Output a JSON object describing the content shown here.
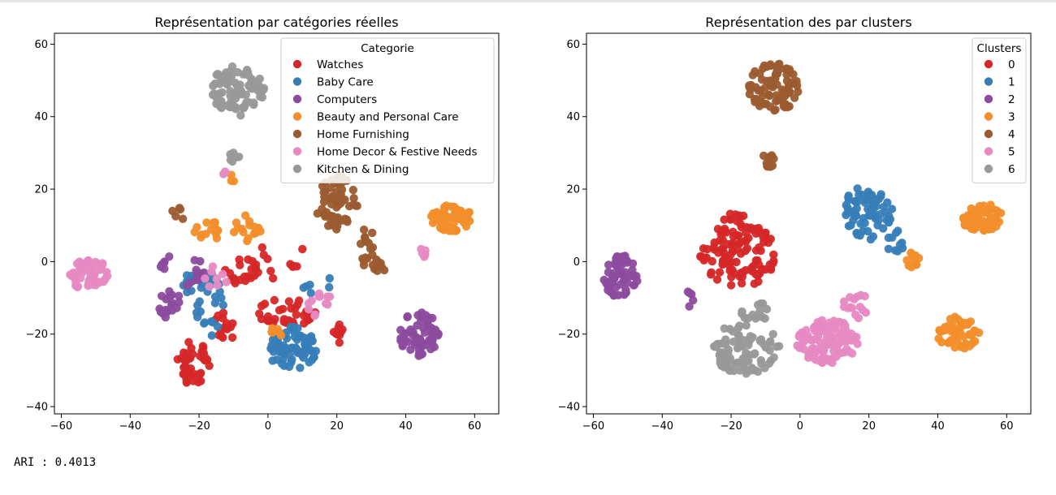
{
  "output": {
    "ari_label": "ARI : ",
    "ari_value": "0.4013"
  },
  "colors": {
    "red": "#d62728",
    "blue": "#377eb8",
    "purple": "#8c4b9e",
    "orange": "#f28e2b",
    "brown": "#9b5b2f",
    "pink": "#e78ac3",
    "gray": "#999999"
  },
  "chart_data": [
    {
      "type": "scatter",
      "title": "Représentation  par catégories réelles",
      "xlabel": "",
      "ylabel": "",
      "xlim": [
        -62,
        67
      ],
      "ylim": [
        -42,
        63
      ],
      "xticks": [
        -60,
        -40,
        -20,
        0,
        20,
        40,
        60
      ],
      "yticks": [
        -40,
        -20,
        0,
        20,
        40,
        60
      ],
      "grid": false,
      "legend": {
        "title": "Categorie",
        "placement": "top-right"
      },
      "series": [
        {
          "name": "Watches",
          "color": "#d62728",
          "clusters": [
            {
              "cx": -22,
              "cy": -28,
              "rx": 5,
              "ry": 6,
              "n": 40
            },
            {
              "cx": -12,
              "cy": -18,
              "rx": 4,
              "ry": 4,
              "n": 15
            },
            {
              "cx": -8,
              "cy": -3,
              "rx": 6,
              "ry": 4,
              "n": 20
            },
            {
              "cx": 5,
              "cy": -14,
              "rx": 9,
              "ry": 4,
              "n": 35
            },
            {
              "cx": 20,
              "cy": -20,
              "rx": 2,
              "ry": 3,
              "n": 10
            },
            {
              "cx": 4,
              "cy": 0,
              "rx": 8,
              "ry": 6,
              "n": 10
            }
          ]
        },
        {
          "name": "Baby Care",
          "color": "#377eb8",
          "clusters": [
            {
              "cx": 7,
              "cy": -24,
              "rx": 7,
              "ry": 6,
              "n": 75
            },
            {
              "cx": -17,
              "cy": -12,
              "rx": 4,
              "ry": 10,
              "n": 25
            },
            {
              "cx": -23,
              "cy": -7,
              "rx": 4,
              "ry": 4,
              "n": 10
            },
            {
              "cx": 14,
              "cy": -6,
              "rx": 5,
              "ry": 3,
              "n": 6
            }
          ]
        },
        {
          "name": "Computers",
          "color": "#8c4b9e",
          "clusters": [
            {
              "cx": 44,
              "cy": -20,
              "rx": 6,
              "ry": 6,
              "n": 60
            },
            {
              "cx": -28,
              "cy": -12,
              "rx": 4,
              "ry": 4,
              "n": 18
            },
            {
              "cx": -22,
              "cy": -3,
              "rx": 4,
              "ry": 4,
              "n": 10
            },
            {
              "cx": -30,
              "cy": 1,
              "rx": 2,
              "ry": 3,
              "n": 6
            }
          ]
        },
        {
          "name": "Beauty and Personal Care",
          "color": "#f28e2b",
          "clusters": [
            {
              "cx": 53,
              "cy": 12,
              "rx": 6,
              "ry": 4,
              "n": 60
            },
            {
              "cx": -17,
              "cy": 8,
              "rx": 5,
              "ry": 3,
              "n": 14
            },
            {
              "cx": -6,
              "cy": 9,
              "rx": 4,
              "ry": 4,
              "n": 15
            },
            {
              "cx": 2,
              "cy": -20,
              "rx": 2,
              "ry": 2,
              "n": 6
            },
            {
              "cx": -11,
              "cy": 23,
              "rx": 2,
              "ry": 1,
              "n": 3
            }
          ]
        },
        {
          "name": "Home Furnishing",
          "color": "#9b5b2f",
          "clusters": [
            {
              "cx": 20,
              "cy": 16,
              "rx": 6,
              "ry": 8,
              "n": 60
            },
            {
              "cx": 28,
              "cy": 4,
              "rx": 4,
              "ry": 5,
              "n": 15
            },
            {
              "cx": 32,
              "cy": -2,
              "rx": 2,
              "ry": 3,
              "n": 10
            },
            {
              "cx": -26,
              "cy": 13,
              "rx": 2,
              "ry": 2,
              "n": 5
            }
          ]
        },
        {
          "name": "Home Decor & Festive Needs",
          "color": "#e78ac3",
          "clusters": [
            {
              "cx": -52,
              "cy": -4,
              "rx": 6,
              "ry": 5,
              "n": 55
            },
            {
              "cx": 15,
              "cy": -12,
              "rx": 4,
              "ry": 4,
              "n": 12
            },
            {
              "cx": -15,
              "cy": -4,
              "rx": 4,
              "ry": 4,
              "n": 8
            },
            {
              "cx": 45,
              "cy": 2,
              "rx": 2,
              "ry": 2,
              "n": 5
            },
            {
              "cx": -12,
              "cy": 24,
              "rx": 1,
              "ry": 1,
              "n": 3
            }
          ]
        },
        {
          "name": "Kitchen & Dining",
          "color": "#999999",
          "clusters": [
            {
              "cx": -9,
              "cy": 47,
              "rx": 8,
              "ry": 7,
              "n": 80
            },
            {
              "cx": -10,
              "cy": 29,
              "rx": 2,
              "ry": 1.5,
              "n": 6
            }
          ]
        }
      ]
    },
    {
      "type": "scatter",
      "title": "Représentation des  par clusters",
      "xlabel": "",
      "ylabel": "",
      "xlim": [
        -62,
        67
      ],
      "ylim": [
        -42,
        63
      ],
      "xticks": [
        -60,
        -40,
        -20,
        0,
        20,
        40,
        60
      ],
      "yticks": [
        -40,
        -20,
        0,
        20,
        40,
        60
      ],
      "grid": false,
      "legend": {
        "title": "Clusters",
        "placement": "top-right"
      },
      "series": [
        {
          "name": "0",
          "color": "#d62728",
          "clusters": [
            {
              "cx": -18,
              "cy": 2,
              "rx": 11,
              "ry": 9,
              "n": 110
            },
            {
              "cx": -20,
              "cy": 12,
              "rx": 4,
              "ry": 2,
              "n": 10
            }
          ]
        },
        {
          "name": "1",
          "color": "#377eb8",
          "clusters": [
            {
              "cx": 20,
              "cy": 14,
              "rx": 7,
              "ry": 8,
              "n": 70
            },
            {
              "cx": 28,
              "cy": 5,
              "rx": 3,
              "ry": 4,
              "n": 10
            }
          ]
        },
        {
          "name": "2",
          "color": "#8c4b9e",
          "clusters": [
            {
              "cx": -52,
              "cy": -4,
              "rx": 5,
              "ry": 6,
              "n": 55
            },
            {
              "cx": -33,
              "cy": -10,
              "rx": 2,
              "ry": 3,
              "n": 5
            }
          ]
        },
        {
          "name": "3",
          "color": "#f28e2b",
          "clusters": [
            {
              "cx": 53,
              "cy": 12,
              "rx": 6,
              "ry": 4,
              "n": 60
            },
            {
              "cx": 46,
              "cy": -20,
              "rx": 6,
              "ry": 5,
              "n": 50
            },
            {
              "cx": 33,
              "cy": 0,
              "rx": 2,
              "ry": 3,
              "n": 10
            }
          ]
        },
        {
          "name": "4",
          "color": "#9b5b2f",
          "clusters": [
            {
              "cx": -7,
              "cy": 48,
              "rx": 8,
              "ry": 7,
              "n": 80
            },
            {
              "cx": -9,
              "cy": 28,
              "rx": 2,
              "ry": 2,
              "n": 10
            }
          ]
        },
        {
          "name": "5",
          "color": "#e78ac3",
          "clusters": [
            {
              "cx": 8,
              "cy": -22,
              "rx": 9,
              "ry": 6,
              "n": 110
            },
            {
              "cx": 16,
              "cy": -12,
              "rx": 4,
              "ry": 4,
              "n": 15
            }
          ]
        },
        {
          "name": "6",
          "color": "#999999",
          "clusters": [
            {
              "cx": -16,
              "cy": -24,
              "rx": 10,
              "ry": 7,
              "n": 85
            },
            {
              "cx": -12,
              "cy": -14,
              "rx": 5,
              "ry": 3,
              "n": 15
            }
          ]
        }
      ]
    }
  ]
}
